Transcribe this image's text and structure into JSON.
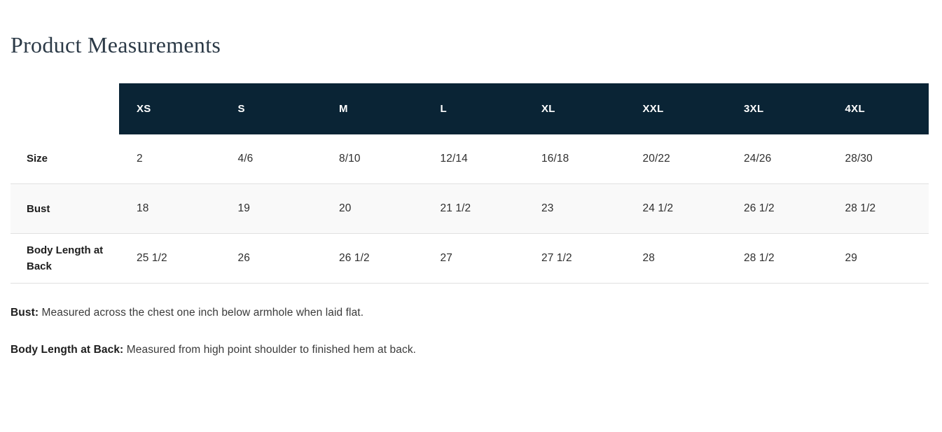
{
  "title": "Product Measurements",
  "table": {
    "columns": [
      "XS",
      "S",
      "M",
      "L",
      "XL",
      "XXL",
      "3XL",
      "4XL"
    ],
    "rows": [
      {
        "label": "Size",
        "values": [
          "2",
          "4/6",
          "8/10",
          "12/14",
          "16/18",
          "20/22",
          "24/26",
          "28/30"
        ]
      },
      {
        "label": "Bust",
        "values": [
          "18",
          "19",
          "20",
          "21 1/2",
          "23",
          "24 1/2",
          "26 1/2",
          "28 1/2"
        ]
      },
      {
        "label": "Body Length at Back",
        "values": [
          "25 1/2",
          "26",
          "26 1/2",
          "27",
          "27 1/2",
          "28",
          "28 1/2",
          "29"
        ]
      }
    ]
  },
  "notes": [
    {
      "label": "Bust:",
      "text": "Measured across the chest one inch below armhole when laid flat."
    },
    {
      "label": "Body Length at Back:",
      "text": "Measured from high point shoulder to finished hem at back."
    }
  ],
  "colors": {
    "header_bg": "#0a2435",
    "header_text": "#ffffff",
    "row_alt_bg": "#f9f9f9",
    "divider": "#e1e1e1",
    "title_text": "#2c3a47",
    "body_text": "#2e2e2e",
    "label_text": "#1d1d1d"
  }
}
